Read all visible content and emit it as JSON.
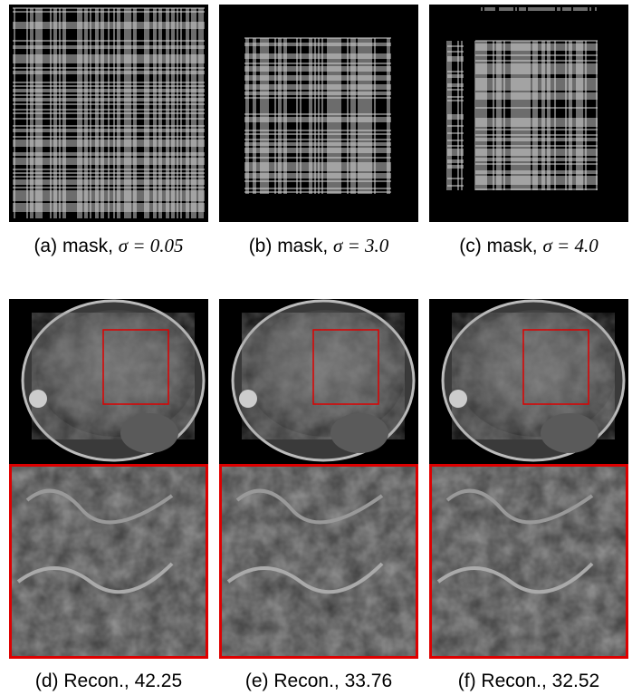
{
  "panels": [
    {
      "label": "(a) mask, ",
      "math": "σ = 0.05"
    },
    {
      "label": "(b) mask, ",
      "math": "σ = 3.0"
    },
    {
      "label": "(c) mask, ",
      "math": "σ = 4.0"
    },
    {
      "label": "(d) Recon., 42.25"
    },
    {
      "label": "(e) Recon., 33.76"
    },
    {
      "label": "(f) Recon., 32.52"
    }
  ]
}
